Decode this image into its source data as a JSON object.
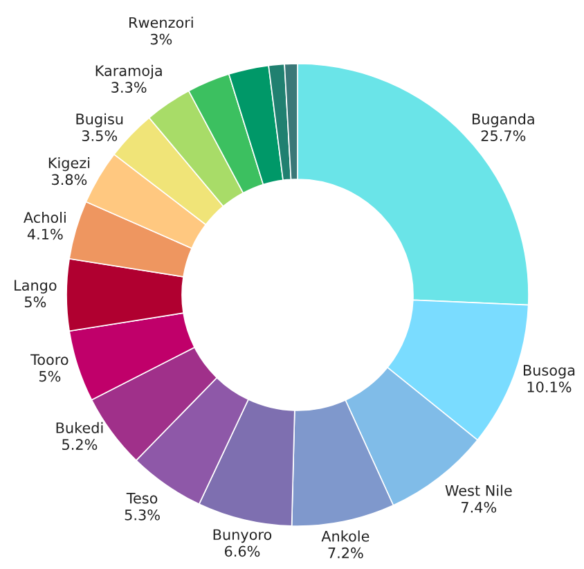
{
  "chart_data": {
    "type": "donut",
    "categories": [
      "Buganda",
      "Busoga",
      "West Nile",
      "Ankole",
      "Bunyoro",
      "Teso",
      "Bukedi",
      "Tooro",
      "Lango",
      "Acholi",
      "Kigezi",
      "Bugisu",
      "Karamoja",
      "Rwenzori",
      null,
      null,
      null
    ],
    "values": [
      25.7,
      10.1,
      7.4,
      7.2,
      6.6,
      5.3,
      5.2,
      5,
      5,
      4.1,
      3.8,
      3.5,
      3.3,
      3,
      2.8,
      1.1,
      0.9
    ],
    "value_labels": [
      "25.7%",
      "10.1%",
      "7.4%",
      "7.2%",
      "6.6%",
      "5.3%",
      "5.2%",
      "5%",
      "5%",
      "4.1%",
      "3.8%",
      "3.5%",
      "3.3%",
      "3%",
      null,
      null,
      null
    ],
    "colors": [
      "#6ae4e8",
      "#7adcff",
      "#80bce8",
      "#7f98cc",
      "#7e6fb0",
      "#8e58a8",
      "#a0308a",
      "#c0006a",
      "#b00030",
      "#ee9660",
      "#ffc880",
      "#f0e478",
      "#a8dc68",
      "#3cc060",
      "#009868",
      "#208070",
      "#3a7878"
    ]
  }
}
